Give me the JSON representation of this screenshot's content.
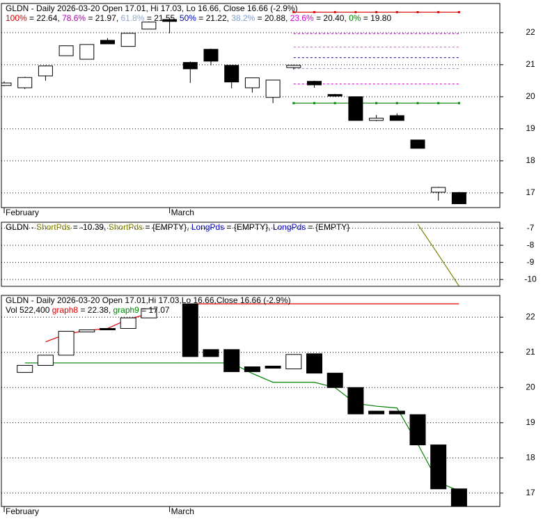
{
  "chart_data": [
    {
      "type": "candlestick",
      "legend": [
        [
          {
            "text": "GLDN - Daily 2026-03-20 Open 17.01, Hi 17.03, Lo 16.66, Close 16.66 (-2.9%)",
            "color": "#000000"
          }
        ],
        [
          {
            "text": "100%",
            "color": "#e00000"
          },
          {
            "text": " = 22.64, ",
            "color": "#000000"
          },
          {
            "text": "78.6%",
            "color": "#b000b0"
          },
          {
            "text": " = 21.97, ",
            "color": "#000000"
          },
          {
            "text": "61.8%",
            "color": "#8ea9c8"
          },
          {
            "text": " = 21.55, ",
            "color": "#000000"
          },
          {
            "text": "50%",
            "color": "#0000c0"
          },
          {
            "text": " = 21.22, ",
            "color": "#000000"
          },
          {
            "text": "38.2%",
            "color": "#7fa0d0"
          },
          {
            "text": " = 20.88, ",
            "color": "#000000"
          },
          {
            "text": "23.6%",
            "color": "#d000d0"
          },
          {
            "text": " = 20.40, ",
            "color": "#000000"
          },
          {
            "text": "0%",
            "color": "#008000"
          },
          {
            "text": " = 19.80",
            "color": "#000000"
          }
        ]
      ],
      "categories": [
        "February",
        null,
        null,
        null,
        null,
        null,
        null,
        null,
        "March",
        null,
        null,
        null,
        null,
        null,
        null,
        null,
        null,
        null,
        null,
        null,
        null,
        null,
        null
      ],
      "open": [
        20.35,
        20.28,
        20.65,
        21.28,
        21.17,
        21.76,
        21.57,
        22.11,
        22.41,
        21.07,
        21.48,
        20.98,
        20.28,
        19.98,
        20.91,
        20.48,
        20.07,
        20.0,
        19.26,
        19.41,
        18.65,
        17.02,
        17.01
      ],
      "high": [
        20.48,
        20.62,
        20.98,
        21.6,
        21.63,
        21.83,
        21.98,
        22.35,
        22.41,
        21.1,
        21.5,
        20.98,
        20.59,
        20.52,
        21.0,
        20.5,
        20.09,
        20.0,
        19.43,
        19.48,
        18.65,
        17.19,
        17.03
      ],
      "low": [
        20.33,
        20.24,
        20.5,
        21.28,
        21.17,
        21.65,
        21.57,
        22.11,
        21.98,
        20.43,
        20.98,
        20.26,
        20.13,
        19.8,
        20.85,
        20.28,
        20.0,
        19.26,
        19.24,
        19.26,
        18.39,
        16.76,
        16.66
      ],
      "close": [
        20.43,
        20.6,
        20.96,
        21.59,
        21.63,
        21.65,
        21.98,
        22.33,
        22.35,
        20.87,
        21.11,
        20.46,
        20.59,
        20.52,
        20.98,
        20.37,
        20.02,
        19.26,
        19.33,
        19.26,
        18.39,
        17.17,
        16.66
      ],
      "levels": [
        {
          "value": 22.64,
          "color": "#e00000",
          "style": "solid"
        },
        {
          "value": 21.97,
          "color": "#b000b0",
          "style": "dotted"
        },
        {
          "value": 21.55,
          "color": "#c070c0",
          "style": "dotted"
        },
        {
          "value": 21.22,
          "color": "#000080",
          "style": "dotted"
        },
        {
          "value": 20.88,
          "color": "#8090b0",
          "style": "dotted"
        },
        {
          "value": 20.4,
          "color": "#d000d0",
          "style": "dotted"
        },
        {
          "value": 19.8,
          "color": "#008000",
          "style": "solid"
        }
      ],
      "ylim": [
        16.54,
        22.91
      ],
      "yticks": [
        17,
        18,
        19,
        20,
        21,
        22
      ],
      "grid": true
    },
    {
      "type": "line",
      "legend": [
        [
          {
            "text": "GLDN - ",
            "color": "#000000"
          },
          {
            "text": "ShortPds",
            "color": "#808000"
          },
          {
            "text": " = -10.39, ",
            "color": "#000000"
          },
          {
            "text": "ShortPds",
            "color": "#808000"
          },
          {
            "text": " = {EMPTY}, ",
            "color": "#000000"
          },
          {
            "text": "LongPds",
            "color": "#0000c0"
          },
          {
            "text": " = {EMPTY}, ",
            "color": "#000000"
          },
          {
            "text": "LongPds",
            "color": "#0000c0"
          },
          {
            "text": " = {EMPTY}",
            "color": "#000000"
          }
        ]
      ],
      "series": [
        {
          "name": "ShortPds",
          "color": "#808000",
          "values": [
            null,
            null,
            null,
            null,
            null,
            null,
            null,
            null,
            null,
            null,
            null,
            null,
            null,
            null,
            null,
            null,
            null,
            null,
            null,
            null,
            -6.76,
            -8.55,
            -10.39
          ]
        }
      ],
      "ylim": [
        -10.4,
        -6.65
      ],
      "yticks": [
        -10,
        -9,
        -8,
        -7
      ],
      "grid": true
    },
    {
      "type": "candlestick",
      "legend": [
        [
          {
            "text": "GLDN - Daily 2026-03-20 Open 17.01,Hi 17.03,Lo 16.66,Close 16.66 (-2.9%)",
            "color": "#000000"
          }
        ],
        [
          {
            "text": "Vol 522,400 ",
            "color": "#000000"
          },
          {
            "text": "graph8",
            "color": "#e00000"
          },
          {
            "text": " = 22.38, ",
            "color": "#000000"
          },
          {
            "text": "graph9",
            "color": "#008000"
          },
          {
            "text": " = 17.07",
            "color": "#000000"
          }
        ]
      ],
      "categories": [
        "February",
        null,
        null,
        null,
        null,
        null,
        null,
        null,
        "March",
        null,
        null,
        null,
        null,
        null,
        null,
        null,
        null,
        null,
        null,
        null,
        null,
        null,
        null
      ],
      "open": [
        null,
        20.43,
        20.63,
        20.92,
        21.58,
        21.68,
        21.68,
        21.98,
        null,
        22.38,
        21.08,
        21.08,
        20.59,
        20.61,
        20.53,
        20.96,
        20.41,
        20.0,
        19.33,
        19.33,
        19.23,
        18.37,
        17.12
      ],
      "close": [
        null,
        20.63,
        20.92,
        21.6,
        21.64,
        21.64,
        21.98,
        22.24,
        null,
        20.88,
        20.88,
        20.45,
        20.45,
        20.55,
        20.94,
        20.41,
        20.0,
        19.25,
        19.25,
        19.25,
        18.37,
        17.12,
        16.64
      ],
      "series": [
        {
          "name": "graph8",
          "color": "#e00000",
          "values": [
            null,
            null,
            21.3,
            21.52,
            21.62,
            21.68,
            21.94,
            22.1,
            null,
            22.38,
            22.38,
            22.38,
            22.38,
            22.38,
            22.38,
            22.38,
            22.38,
            22.38,
            22.38,
            22.38,
            22.38,
            22.38,
            22.38
          ]
        },
        {
          "name": "graph9",
          "color": "#008000",
          "values": [
            null,
            20.7,
            20.7,
            20.7,
            20.7,
            20.7,
            20.7,
            20.7,
            20.7,
            20.7,
            20.7,
            20.7,
            20.4,
            20.15,
            20.15,
            20.15,
            20.0,
            19.55,
            19.47,
            19.42,
            18.4,
            17.3,
            17.07
          ]
        }
      ],
      "ylim": [
        16.62,
        22.62
      ],
      "yticks": [
        17,
        18,
        19,
        20,
        21,
        22
      ],
      "grid": true
    }
  ]
}
